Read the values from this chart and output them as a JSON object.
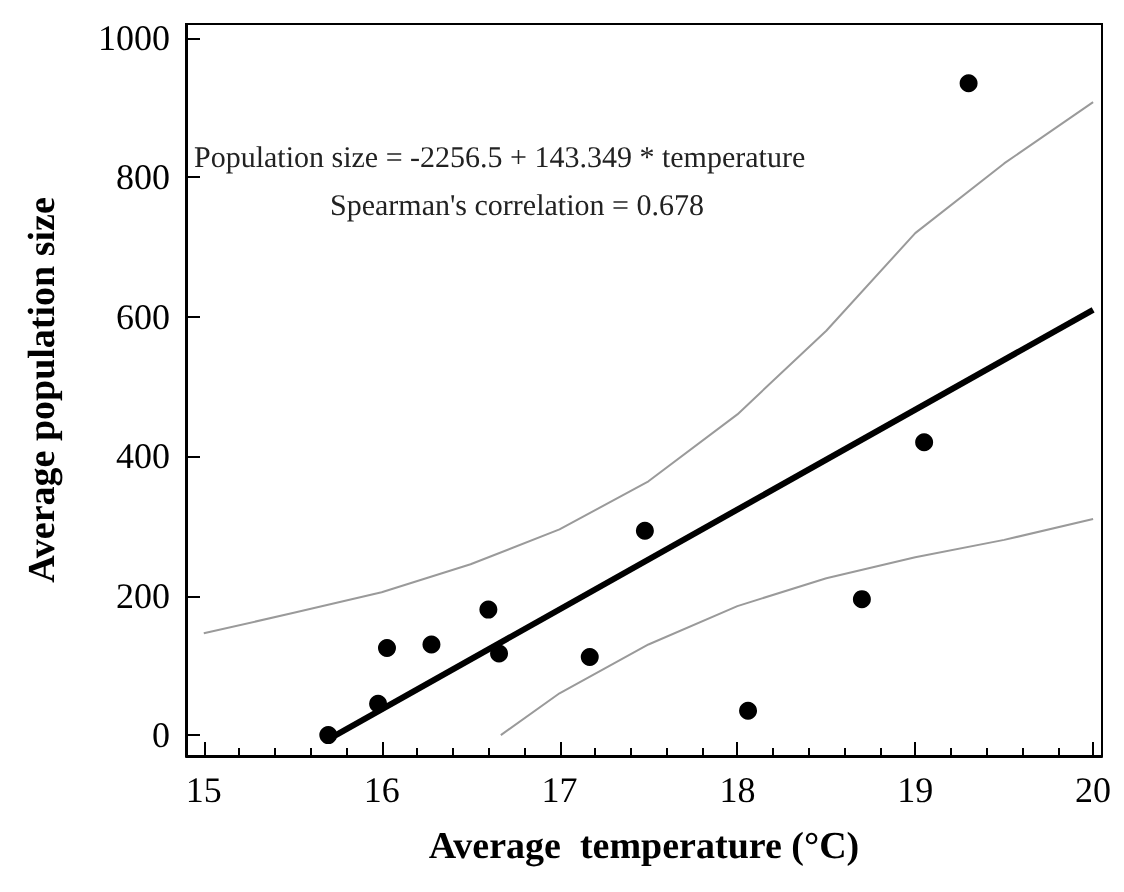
{
  "chart_data": {
    "type": "scatter",
    "xlabel": "Average  temperature (°C)",
    "ylabel": "Average population size",
    "xlim": [
      14.9,
      20.05
    ],
    "ylim": [
      -30,
      1020
    ],
    "xticks": [
      15,
      16,
      17,
      18,
      19,
      20
    ],
    "yticks": [
      0,
      200,
      400,
      600,
      800,
      1000
    ],
    "grid": false,
    "annotations": [
      "Population size = -2256.5 + 143.349 * temperature",
      "Spearman's correlation = 0.678"
    ],
    "series": [
      {
        "marker": "circle",
        "color": "#000000",
        "x": [
          15.7,
          15.98,
          16.03,
          16.28,
          16.6,
          16.66,
          17.17,
          17.48,
          18.06,
          18.7,
          19.05,
          19.3
        ],
        "values": [
          0,
          45,
          125,
          130,
          180,
          117,
          112,
          293,
          35,
          195,
          420,
          935
        ]
      },
      {
        "type": "line",
        "line_style": "solid",
        "marker": "none",
        "color": "#000000",
        "x": [
          15.7,
          20
        ],
        "values": [
          -6,
          610
        ]
      },
      {
        "type": "line",
        "line_style": "solid",
        "marker": "none",
        "color": "#9a9a9a",
        "x": [
          15,
          15.5,
          16,
          16.5,
          17,
          17.5,
          18,
          18.5,
          19,
          19.5,
          20
        ],
        "values": [
          146,
          175,
          205,
          245,
          295,
          364,
          460,
          580,
          720,
          820,
          908
        ]
      },
      {
        "type": "line",
        "line_style": "solid",
        "marker": "none",
        "color": "#9a9a9a",
        "x": [
          16.67,
          17,
          17.5,
          18,
          18.5,
          19,
          19.5,
          20
        ],
        "values": [
          0,
          60,
          130,
          185,
          225,
          255,
          280,
          310
        ]
      }
    ]
  }
}
